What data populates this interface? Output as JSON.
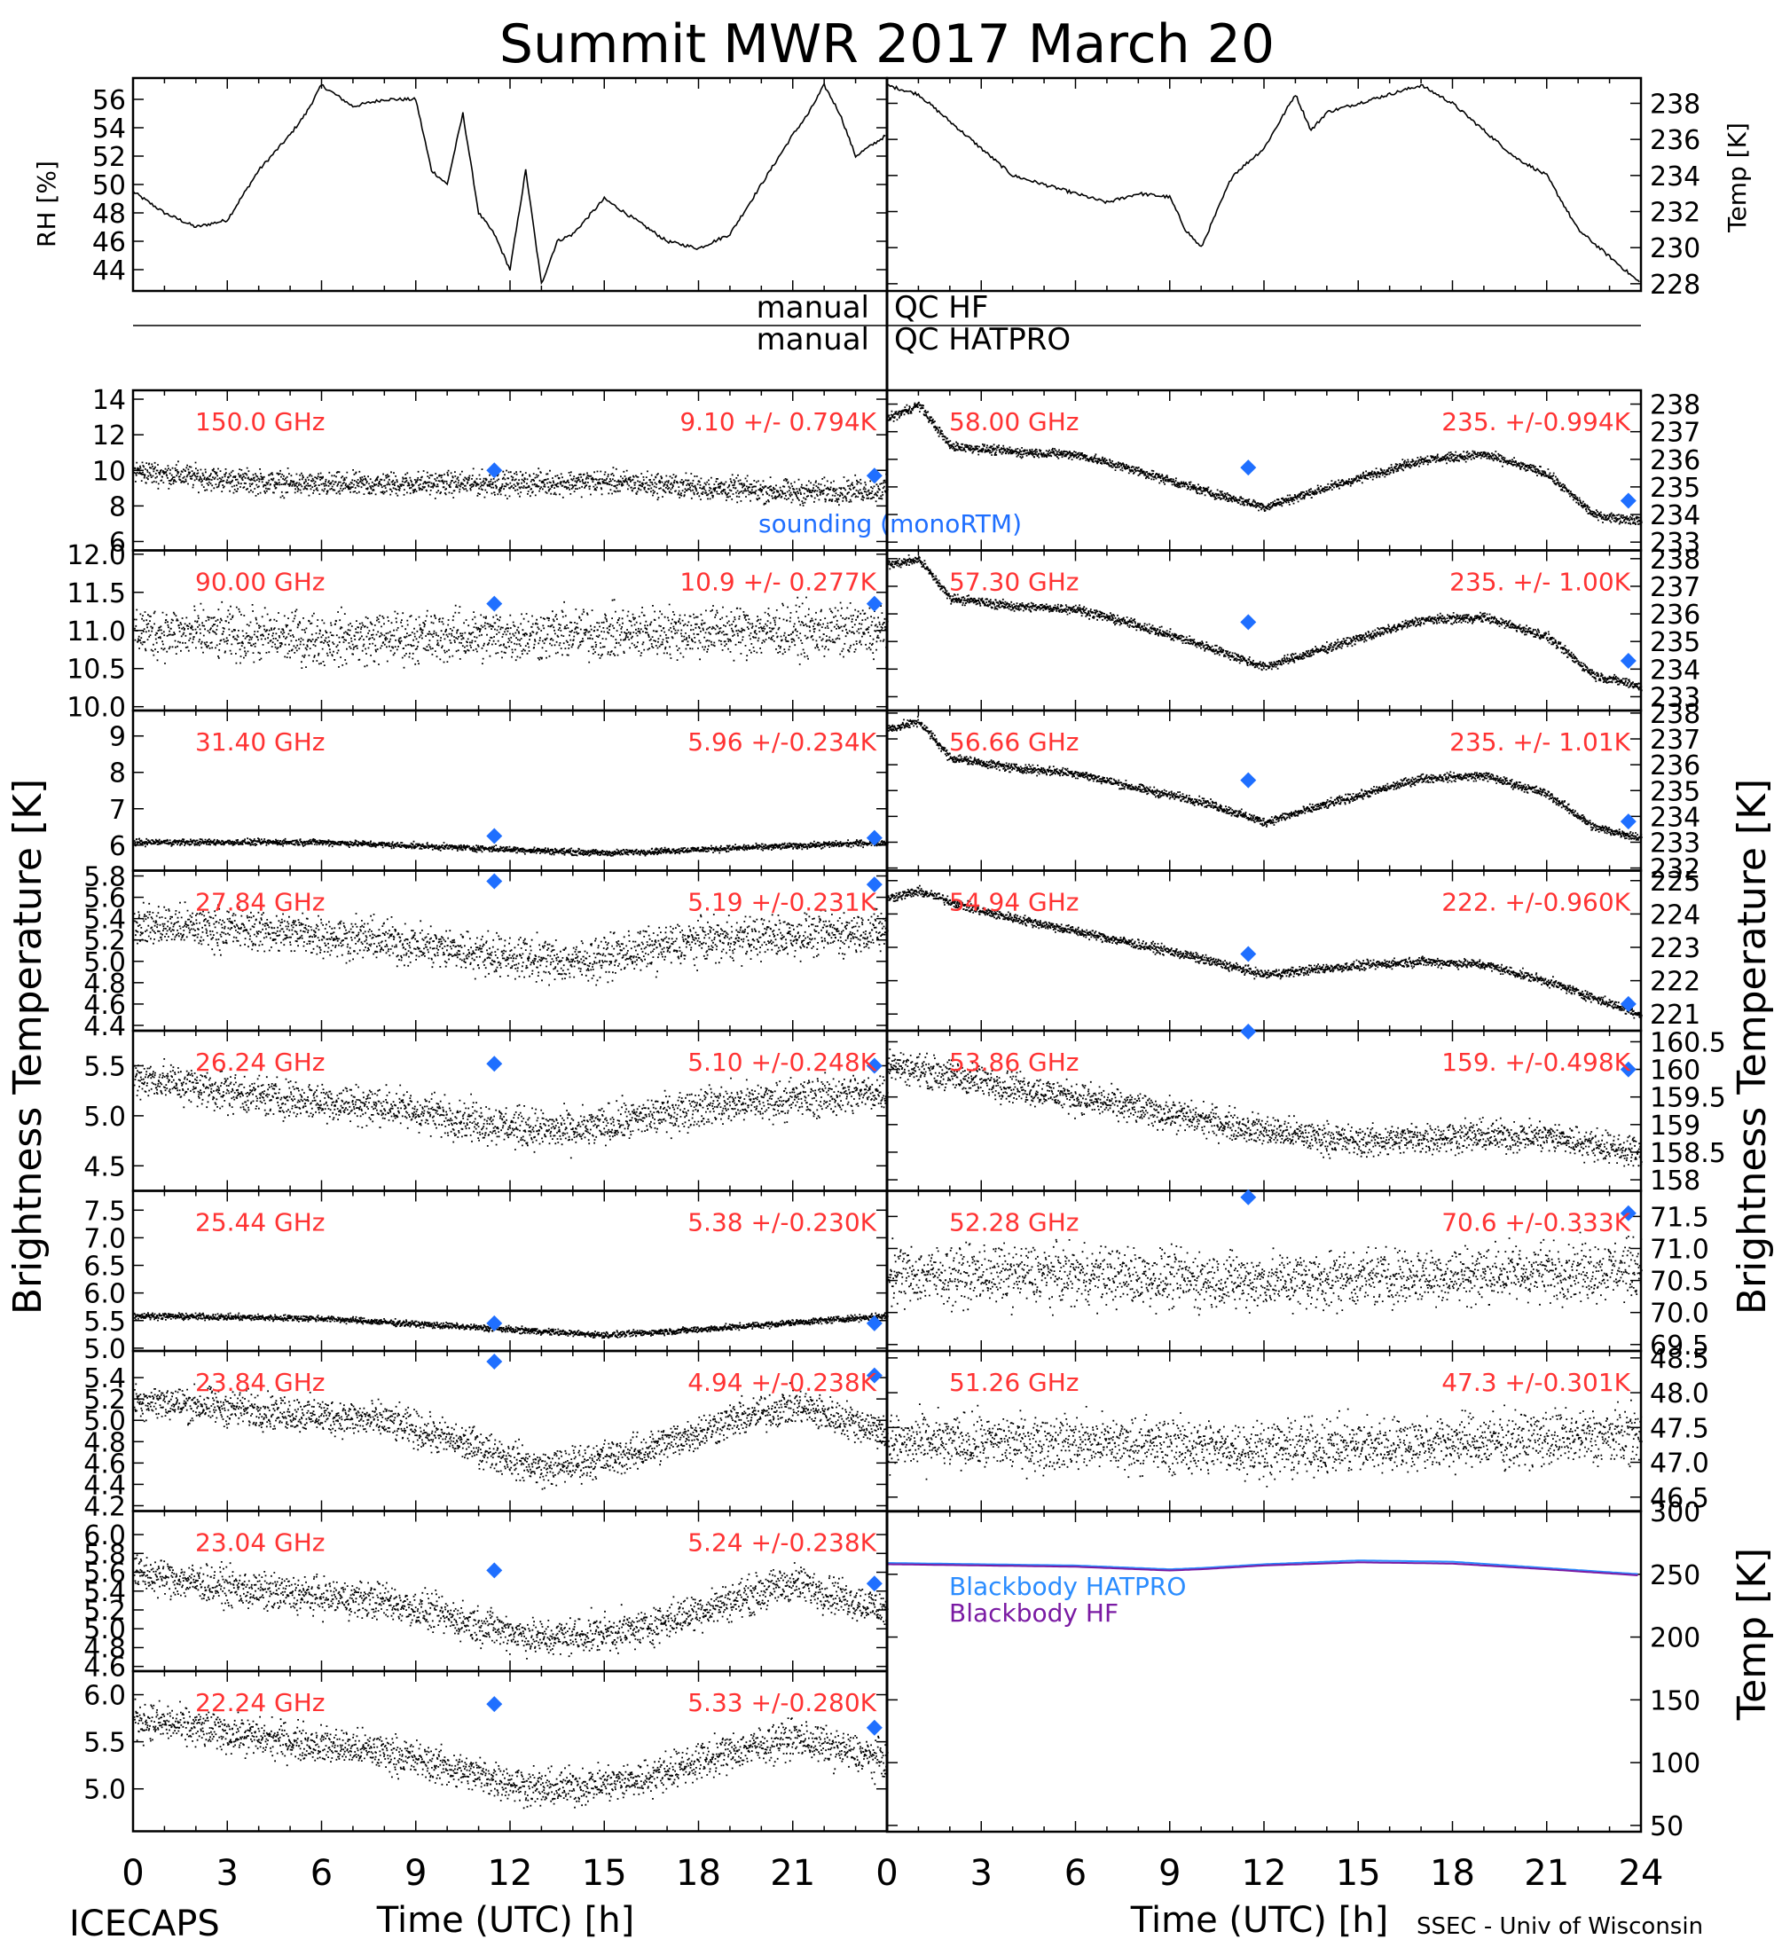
{
  "title": "Summit MWR 2017 March 20",
  "footer": {
    "left": "ICECAPS",
    "right": "SSEC - Univ of Wisconsin"
  },
  "qc": {
    "left_hf": "manual",
    "right_hf": "QC HF",
    "left_hatpro": "manual",
    "right_hatpro": "QC HATPRO"
  },
  "labels": {
    "rh": "RH [%]",
    "temp_top": "Temp [K]",
    "tb_left": "Brightness Temperature [K]",
    "tb_right": "Brightness Temperature [K]",
    "temp_bb": "Temp [K]",
    "xlabel_left": "Time (UTC) [h]",
    "xlabel_right": "Time (UTC) [h]",
    "sounding": "sounding (monoRTM)"
  },
  "colors": {
    "data": "#000000",
    "annotation": "#ff3333",
    "sounding": "#1f6fff",
    "bb_hatpro": "#2a8cff",
    "bb_hf": "#7a1aa3"
  },
  "chart_data": [
    {
      "type": "line",
      "id": "rh",
      "ylabel": "RH [%]",
      "xlim": [
        0,
        24
      ],
      "ylim": [
        42.5,
        57.5
      ],
      "yticks": [
        44,
        46,
        48,
        50,
        52,
        54,
        56
      ],
      "x": [
        0,
        1,
        2,
        3,
        4,
        5,
        5.5,
        6,
        7,
        8,
        9,
        9.5,
        10,
        10.5,
        11,
        11.5,
        12,
        12.5,
        13,
        13.5,
        14,
        15,
        16,
        17,
        18,
        19,
        20,
        21,
        21.5,
        22,
        22.5,
        23,
        24
      ],
      "y": [
        49.5,
        48,
        47,
        47.5,
        51,
        53.5,
        55,
        57,
        55.5,
        56,
        56,
        51,
        50,
        55,
        48,
        46.5,
        44,
        51,
        43,
        46,
        46.5,
        49,
        47.5,
        46,
        45.5,
        46.5,
        50,
        53.5,
        55,
        57,
        55,
        52,
        53.5
      ]
    },
    {
      "type": "line",
      "id": "temp_top",
      "ylabel": "Temp [K]",
      "xlim": [
        0,
        24
      ],
      "ylim": [
        227.6,
        239.4
      ],
      "yticks": [
        228,
        230,
        232,
        234,
        236,
        238
      ],
      "x": [
        0,
        1,
        2,
        3,
        4,
        5,
        6,
        7,
        8,
        9,
        9.5,
        10,
        11,
        12,
        13,
        13.5,
        14,
        15,
        16,
        17,
        18,
        19,
        20,
        21,
        22,
        23,
        24
      ],
      "y": [
        239,
        238.5,
        237,
        235.5,
        234,
        233.5,
        233,
        232.5,
        233,
        232.8,
        231,
        230,
        234,
        235.5,
        238.5,
        236.5,
        237.5,
        238,
        238.5,
        239,
        238,
        236.5,
        235,
        234,
        231,
        229.5,
        228
      ]
    },
    {
      "type": "scatter",
      "id": "tb_150",
      "side": "left",
      "freq": "150.0 GHz",
      "stat": "9.10 +/- 0.794K",
      "ylim": [
        5.5,
        14.5
      ],
      "yticks": [
        6,
        8,
        10,
        12,
        14
      ],
      "x": [
        0,
        3,
        6,
        9,
        12,
        15,
        18,
        21,
        24
      ],
      "y": [
        10,
        9.5,
        9.2,
        9.3,
        9.3,
        9.4,
        9.1,
        8.8,
        9
      ],
      "noise": 1.2,
      "sounding": [
        [
          11.5,
          10
        ],
        [
          23.6,
          9.7
        ]
      ]
    },
    {
      "type": "scatter",
      "id": "tb_9000",
      "side": "left",
      "freq": "90.00 GHz",
      "stat": "10.9 +/- 0.277K",
      "ylim": [
        9.95,
        12.05
      ],
      "yticks": [
        10.0,
        10.5,
        11.0,
        11.5,
        12.0
      ],
      "x": [
        0,
        6,
        12,
        18,
        24
      ],
      "y": [
        11,
        10.9,
        10.95,
        11,
        11
      ],
      "noise": 0.6,
      "sounding": [
        [
          11.5,
          11.35
        ],
        [
          23.6,
          11.35
        ]
      ]
    },
    {
      "type": "scatter",
      "id": "tb_3140",
      "side": "left",
      "freq": "31.40 GHz",
      "stat": "5.96 +/-0.234K",
      "ylim": [
        5.3,
        9.7
      ],
      "yticks": [
        6,
        7,
        8,
        9
      ],
      "x": [
        0,
        6,
        12,
        15,
        18,
        24
      ],
      "y": [
        6.1,
        6.1,
        5.9,
        5.8,
        5.9,
        6.1
      ],
      "noise": 0.15,
      "sounding": [
        [
          11.5,
          6.25
        ],
        [
          23.6,
          6.2
        ]
      ]
    },
    {
      "type": "scatter",
      "id": "tb_2784",
      "side": "left",
      "freq": "27.84 GHz",
      "stat": "5.19 +/-0.231K",
      "ylim": [
        4.35,
        5.85
      ],
      "yticks": [
        4.4,
        4.6,
        4.8,
        5.0,
        5.2,
        5.4,
        5.6,
        5.8
      ],
      "x": [
        0,
        4,
        8,
        12,
        14,
        18,
        24
      ],
      "y": [
        5.35,
        5.3,
        5.2,
        5.05,
        5.0,
        5.2,
        5.3
      ],
      "noise": 0.35,
      "sounding": [
        [
          11.5,
          5.75
        ],
        [
          23.6,
          5.72
        ]
      ]
    },
    {
      "type": "scatter",
      "id": "tb_2624",
      "side": "left",
      "freq": "26.24 GHz",
      "stat": "5.10 +/-0.248K",
      "ylim": [
        4.25,
        5.85
      ],
      "yticks": [
        4.5,
        5.0,
        5.5
      ],
      "x": [
        0,
        4,
        8,
        12,
        14,
        18,
        24
      ],
      "y": [
        5.4,
        5.2,
        5.1,
        4.9,
        4.85,
        5.1,
        5.25
      ],
      "noise": 0.35,
      "sounding": [
        [
          11.5,
          5.52
        ],
        [
          23.6,
          5.5
        ]
      ]
    },
    {
      "type": "scatter",
      "id": "tb_2544",
      "side": "left",
      "freq": "25.44 GHz",
      "stat": "5.38 +/-0.230K",
      "ylim": [
        4.95,
        7.85
      ],
      "yticks": [
        5.0,
        5.5,
        6.0,
        6.5,
        7.0,
        7.5
      ],
      "x": [
        0,
        6,
        12,
        15,
        18,
        24
      ],
      "y": [
        5.6,
        5.55,
        5.35,
        5.25,
        5.35,
        5.6
      ],
      "noise": 0.1,
      "sounding": [
        [
          11.5,
          5.45
        ],
        [
          23.6,
          5.45
        ]
      ]
    },
    {
      "type": "scatter",
      "id": "tb_2384",
      "side": "left",
      "freq": "23.84 GHz",
      "stat": "4.94 +/-0.238K",
      "ylim": [
        4.15,
        5.65
      ],
      "yticks": [
        4.2,
        4.4,
        4.6,
        4.8,
        5.0,
        5.2,
        5.4
      ],
      "x": [
        0,
        4,
        8,
        11,
        13,
        16,
        19,
        21,
        24
      ],
      "y": [
        5.2,
        5.1,
        5.0,
        4.75,
        4.55,
        4.7,
        5.0,
        5.15,
        4.9
      ],
      "noise": 0.3,
      "sounding": [
        [
          11.5,
          5.55
        ],
        [
          23.6,
          5.42
        ]
      ]
    },
    {
      "type": "scatter",
      "id": "tb_2304",
      "side": "left",
      "freq": "23.04 GHz",
      "stat": "5.24 +/-0.238K",
      "ylim": [
        4.55,
        6.25
      ],
      "yticks": [
        4.6,
        4.8,
        5.0,
        5.2,
        5.4,
        5.6,
        5.8,
        6.0
      ],
      "x": [
        0,
        4,
        8,
        11,
        13,
        16,
        19,
        21,
        24
      ],
      "y": [
        5.6,
        5.4,
        5.3,
        5.05,
        4.9,
        5.0,
        5.3,
        5.5,
        5.2
      ],
      "noise": 0.35,
      "sounding": [
        [
          11.5,
          5.62
        ],
        [
          23.6,
          5.48
        ]
      ]
    },
    {
      "type": "scatter",
      "id": "tb_2224",
      "side": "left",
      "freq": "22.24 GHz",
      "stat": "5.33 +/-0.280K",
      "ylim": [
        4.55,
        6.25
      ],
      "yticks": [
        5.0,
        5.5,
        6.0
      ],
      "x": [
        0,
        4,
        8,
        11,
        13,
        16,
        19,
        21,
        24
      ],
      "y": [
        5.75,
        5.55,
        5.4,
        5.15,
        5.0,
        5.1,
        5.4,
        5.55,
        5.3
      ],
      "noise": 0.35,
      "sounding": [
        [
          11.5,
          5.9
        ],
        [
          23.6,
          5.65
        ]
      ]
    },
    {
      "type": "scatter",
      "id": "tb_5800",
      "side": "right",
      "freq": "58.00 GHz",
      "stat": "235. +/-0.994K",
      "ylim": [
        232.7,
        238.5
      ],
      "yticks": [
        233,
        234,
        235,
        236,
        237,
        238
      ],
      "x": [
        0,
        1,
        2,
        4,
        6,
        8,
        10,
        12,
        14,
        17,
        19,
        21,
        22.5,
        24
      ],
      "y": [
        237.5,
        238,
        236.5,
        236.3,
        236.2,
        235.6,
        234.9,
        234.3,
        235,
        236,
        236.2,
        235.5,
        234,
        233.8
      ],
      "noise": 0.3,
      "sounding": [
        [
          11.5,
          235.7
        ],
        [
          23.6,
          234.5
        ]
      ]
    },
    {
      "type": "scatter",
      "id": "tb_5730",
      "side": "right",
      "freq": "57.30 GHz",
      "stat": "235. +/- 1.00K",
      "ylim": [
        232.5,
        238.3
      ],
      "yticks": [
        233,
        234,
        235,
        236,
        237,
        238
      ],
      "x": [
        0,
        1,
        2,
        4,
        6,
        8,
        10,
        12,
        14,
        17,
        19,
        21,
        22.5,
        24
      ],
      "y": [
        237.8,
        238,
        236.6,
        236.3,
        236.2,
        235.6,
        234.9,
        234.1,
        234.8,
        235.8,
        235.9,
        235.2,
        233.8,
        233.4
      ],
      "noise": 0.3,
      "sounding": [
        [
          11.5,
          235.7
        ],
        [
          23.6,
          234.3
        ]
      ]
    },
    {
      "type": "scatter",
      "id": "tb_5666",
      "side": "right",
      "freq": "56.66 GHz",
      "stat": "235. +/- 1.01K",
      "ylim": [
        231.9,
        238.1
      ],
      "yticks": [
        232,
        233,
        234,
        235,
        236,
        237,
        238
      ],
      "x": [
        0,
        1,
        2,
        4,
        6,
        8,
        10,
        12,
        14,
        17,
        19,
        21,
        22.5,
        24
      ],
      "y": [
        237.4,
        237.7,
        236.3,
        235.9,
        235.7,
        235.1,
        234.6,
        233.8,
        234.5,
        235.5,
        235.6,
        234.9,
        233.6,
        233.2
      ],
      "noise": 0.3,
      "sounding": [
        [
          11.5,
          235.4
        ],
        [
          23.6,
          233.8
        ]
      ]
    },
    {
      "type": "scatter",
      "id": "tb_5494",
      "side": "right",
      "freq": "54.94 GHz",
      "stat": "222. +/-0.960K",
      "ylim": [
        220.5,
        225.3
      ],
      "yticks": [
        221,
        222,
        223,
        224,
        225
      ],
      "x": [
        0,
        1,
        3,
        6,
        9,
        12,
        14,
        17,
        19,
        21,
        22.5,
        24
      ],
      "y": [
        224.5,
        224.7,
        224.1,
        223.5,
        222.9,
        222.2,
        222.4,
        222.6,
        222.5,
        222,
        221.5,
        221
      ],
      "noise": 0.25,
      "sounding": [
        [
          11.5,
          222.8
        ],
        [
          23.6,
          221.3
        ]
      ]
    },
    {
      "type": "scatter",
      "id": "tb_5386",
      "side": "right",
      "freq": "53.86 GHz",
      "stat": "159. +/-0.498K",
      "ylim": [
        157.8,
        160.7
      ],
      "yticks": [
        158.0,
        158.5,
        159.0,
        159.5,
        160.0,
        160.5
      ],
      "x": [
        0,
        3,
        6,
        9,
        12,
        15,
        18,
        21,
        24
      ],
      "y": [
        160.1,
        159.8,
        159.5,
        159.2,
        158.9,
        158.7,
        158.8,
        158.8,
        158.5
      ],
      "noise": 0.5,
      "sounding": [
        [
          11.5,
          161.2
        ],
        [
          23.6,
          160.0
        ]
      ]
    },
    {
      "type": "scatter",
      "id": "tb_5228",
      "side": "right",
      "freq": "52.28 GHz",
      "stat": "70.6 +/-0.333K",
      "ylim": [
        69.4,
        71.9
      ],
      "yticks": [
        69.5,
        70.0,
        70.5,
        71.0,
        71.5
      ],
      "x": [
        0,
        6,
        12,
        18,
        24
      ],
      "y": [
        70.6,
        70.6,
        70.5,
        70.6,
        70.7
      ],
      "noise": 0.8,
      "sounding": [
        [
          11.5,
          71.8
        ],
        [
          23.6,
          71.55
        ]
      ]
    },
    {
      "type": "scatter",
      "id": "tb_5126",
      "side": "right",
      "freq": "51.26 GHz",
      "stat": "47.3 +/-0.301K",
      "ylim": [
        46.3,
        48.6
      ],
      "yticks": [
        46.5,
        47.0,
        47.5,
        48.0,
        48.5
      ],
      "x": [
        0,
        6,
        12,
        18,
        24
      ],
      "y": [
        47.3,
        47.3,
        47.2,
        47.3,
        47.4
      ],
      "noise": 0.7,
      "sounding": []
    },
    {
      "type": "line",
      "id": "blackbody",
      "ylabel": "Temp [K]",
      "xlim": [
        0,
        24
      ],
      "ylim": [
        45,
        300
      ],
      "yticks": [
        50,
        100,
        150,
        200,
        250,
        300
      ],
      "series": [
        {
          "name": "Blackbody HATPRO",
          "x": [
            0,
            3,
            6,
            9,
            10,
            12,
            15,
            18,
            21,
            24
          ],
          "y": [
            259,
            258,
            257,
            254,
            255,
            258,
            261,
            260,
            255,
            250
          ]
        },
        {
          "name": "Blackbody HF",
          "x": [
            0,
            3,
            6,
            9,
            10,
            12,
            15,
            18,
            21,
            24
          ],
          "y": [
            258,
            257,
            256,
            253,
            254,
            257,
            259.5,
            258.5,
            254,
            249
          ]
        }
      ]
    }
  ],
  "xticks": [
    "0",
    "3",
    "6",
    "9",
    "12",
    "15",
    "18",
    "21",
    "24"
  ]
}
